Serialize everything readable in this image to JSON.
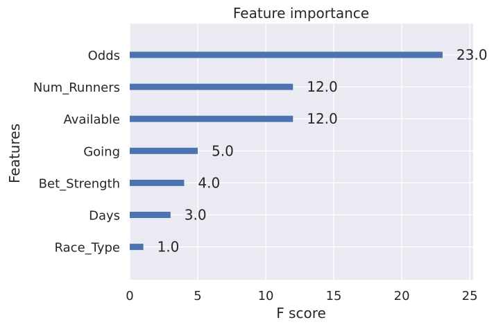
{
  "chart_data": {
    "type": "bar",
    "orientation": "horizontal",
    "title": "Feature importance",
    "xlabel": "F score",
    "ylabel": "Features",
    "categories": [
      "Odds",
      "Num_Runners",
      "Available",
      "Going",
      "Bet_Strength",
      "Days",
      "Race_Type"
    ],
    "values": [
      23,
      12,
      12,
      5,
      4,
      3,
      1
    ],
    "value_labels": [
      "23.0",
      "12.0",
      "12.0",
      "5.0",
      "4.0",
      "3.0",
      "1.0"
    ],
    "xlim": [
      0,
      25.25
    ],
    "xticks": [
      0,
      5,
      10,
      15,
      20,
      25
    ],
    "xtick_labels": [
      "0",
      "5",
      "10",
      "15",
      "20",
      "25"
    ],
    "grid": true,
    "colors": {
      "bar": "#4c72b0",
      "plot_background": "#eaeaf2",
      "grid": "#ffffff",
      "text": "#262626"
    }
  }
}
